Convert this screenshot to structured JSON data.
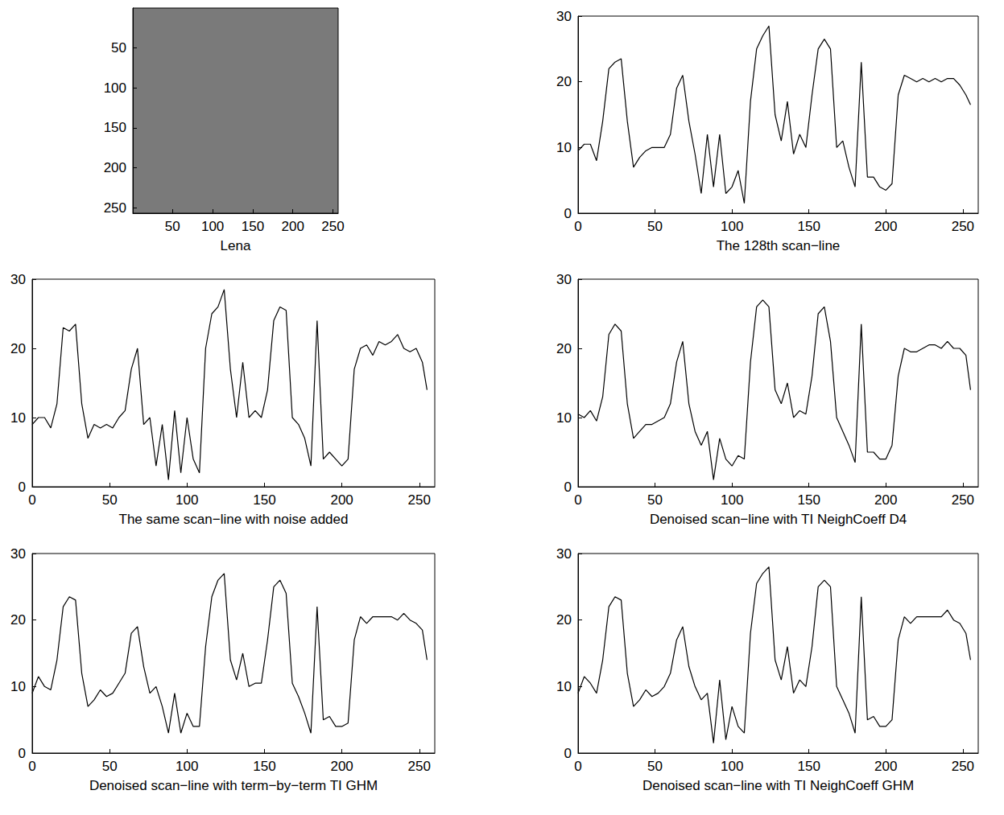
{
  "chart_data": [
    {
      "type": "image",
      "xlabel": "Lena",
      "xlim": [
        0.5,
        256.5
      ],
      "ylim": [
        0.5,
        256.5
      ],
      "xticks": [
        50,
        100,
        150,
        200,
        250
      ],
      "yticks": [
        50,
        100,
        150,
        200,
        250
      ],
      "grid": false
    },
    {
      "type": "line",
      "xlabel": "The 128th scan−line",
      "xlim": [
        0,
        260
      ],
      "ylim": [
        0,
        30
      ],
      "xticks": [
        0,
        50,
        100,
        150,
        200,
        250
      ],
      "yticks": [
        0,
        10,
        20,
        30
      ],
      "grid": false,
      "x": [
        0,
        4,
        8,
        12,
        16,
        20,
        24,
        28,
        32,
        36,
        40,
        44,
        48,
        52,
        56,
        60,
        64,
        68,
        72,
        76,
        80,
        84,
        88,
        92,
        96,
        100,
        104,
        108,
        112,
        116,
        120,
        124,
        128,
        132,
        136,
        140,
        144,
        148,
        152,
        156,
        160,
        164,
        168,
        172,
        176,
        180,
        184,
        188,
        192,
        196,
        200,
        204,
        208,
        212,
        216,
        220,
        224,
        228,
        232,
        236,
        240,
        244,
        248,
        252,
        255
      ],
      "series": [
        {
          "color": "#000000",
          "values": [
            9.5,
            10.5,
            10.5,
            8,
            14,
            22,
            23,
            23.5,
            14,
            7,
            8.5,
            9.5,
            10,
            10,
            10,
            12,
            19,
            21,
            14,
            9,
            3,
            12,
            4,
            12,
            3,
            4,
            6.5,
            1.5,
            17,
            25,
            27,
            28.5,
            15,
            11,
            17,
            9,
            12,
            10,
            18,
            25,
            26.5,
            25,
            10,
            11,
            7,
            4,
            23,
            5.5,
            5.5,
            4,
            3.5,
            4.5,
            18,
            21,
            20.5,
            20,
            20.5,
            20,
            20.5,
            20,
            20.5,
            20.5,
            19.5,
            18,
            16.5
          ]
        }
      ]
    },
    {
      "type": "line",
      "xlabel": "The same scan−line with noise added",
      "xlim": [
        0,
        260
      ],
      "ylim": [
        0,
        30
      ],
      "xticks": [
        0,
        50,
        100,
        150,
        200,
        250
      ],
      "yticks": [
        0,
        10,
        20,
        30
      ],
      "grid": false,
      "x": [
        0,
        4,
        8,
        12,
        16,
        20,
        24,
        28,
        32,
        36,
        40,
        44,
        48,
        52,
        56,
        60,
        64,
        68,
        72,
        76,
        80,
        84,
        88,
        92,
        96,
        100,
        104,
        108,
        112,
        116,
        120,
        124,
        128,
        132,
        136,
        140,
        144,
        148,
        152,
        156,
        160,
        164,
        168,
        172,
        176,
        180,
        184,
        188,
        192,
        196,
        200,
        204,
        208,
        212,
        216,
        220,
        224,
        228,
        232,
        236,
        240,
        244,
        248,
        252,
        255
      ],
      "series": [
        {
          "color": "#000000",
          "values": [
            9,
            10,
            10,
            8.5,
            12,
            23,
            22.5,
            23.5,
            12,
            7,
            9,
            8.5,
            9,
            8.5,
            10,
            11,
            17,
            20,
            9,
            10,
            3,
            9,
            1,
            11,
            2,
            10,
            4,
            2,
            20,
            25,
            26,
            28.5,
            17,
            10,
            18,
            10,
            11,
            10,
            14,
            24,
            26,
            25.5,
            10,
            9,
            7,
            3,
            24,
            4,
            5,
            4,
            3,
            4,
            17,
            20,
            20.5,
            19,
            21,
            20.5,
            21,
            22,
            20,
            19.5,
            20,
            18,
            14
          ]
        }
      ]
    },
    {
      "type": "line",
      "xlabel": "Denoised scan−line with TI NeighCoeff D4",
      "xlim": [
        0,
        260
      ],
      "ylim": [
        0,
        30
      ],
      "xticks": [
        0,
        50,
        100,
        150,
        200,
        250
      ],
      "yticks": [
        0,
        10,
        20,
        30
      ],
      "grid": false,
      "x": [
        0,
        4,
        8,
        12,
        16,
        20,
        24,
        28,
        32,
        36,
        40,
        44,
        48,
        52,
        56,
        60,
        64,
        68,
        72,
        76,
        80,
        84,
        88,
        92,
        96,
        100,
        104,
        108,
        112,
        116,
        120,
        124,
        128,
        132,
        136,
        140,
        144,
        148,
        152,
        156,
        160,
        164,
        168,
        172,
        176,
        180,
        184,
        188,
        192,
        196,
        200,
        204,
        208,
        212,
        216,
        220,
        224,
        228,
        232,
        236,
        240,
        244,
        248,
        252,
        255
      ],
      "series": [
        {
          "color": "#000000",
          "values": [
            10.5,
            10,
            11,
            9.5,
            13,
            22,
            23.5,
            22.5,
            12,
            7,
            8,
            9,
            9,
            9.5,
            10,
            12,
            18,
            21,
            12,
            8,
            6,
            8,
            1,
            7,
            4,
            3,
            4.5,
            4,
            18,
            26,
            27,
            26,
            14,
            12,
            15,
            10,
            11,
            10.5,
            16,
            25,
            26,
            21,
            10,
            8,
            6,
            3.5,
            23.5,
            5,
            5,
            4,
            4,
            6,
            16,
            20,
            19.5,
            19.5,
            20,
            20.5,
            20.5,
            20,
            21,
            20,
            20,
            19,
            14
          ]
        }
      ]
    },
    {
      "type": "line",
      "xlabel": "Denoised scan−line with term−by−term TI GHM",
      "xlim": [
        0,
        260
      ],
      "ylim": [
        0,
        30
      ],
      "xticks": [
        0,
        50,
        100,
        150,
        200,
        250
      ],
      "yticks": [
        0,
        10,
        20,
        30
      ],
      "grid": false,
      "x": [
        0,
        4,
        8,
        12,
        16,
        20,
        24,
        28,
        32,
        36,
        40,
        44,
        48,
        52,
        56,
        60,
        64,
        68,
        72,
        76,
        80,
        84,
        88,
        92,
        96,
        100,
        104,
        108,
        112,
        116,
        120,
        124,
        128,
        132,
        136,
        140,
        144,
        148,
        152,
        156,
        160,
        164,
        168,
        172,
        176,
        180,
        184,
        188,
        192,
        196,
        200,
        204,
        208,
        212,
        216,
        220,
        224,
        228,
        232,
        236,
        240,
        244,
        248,
        252,
        255
      ],
      "series": [
        {
          "color": "#000000",
          "values": [
            9,
            11.5,
            10,
            9.5,
            14,
            22,
            23.5,
            23,
            12,
            7,
            8,
            9.5,
            8.5,
            9,
            10.5,
            12,
            18,
            19,
            13,
            9,
            10,
            7,
            3,
            9,
            3,
            6,
            4,
            4,
            16,
            23.5,
            26,
            27,
            14,
            11,
            15,
            10,
            10.5,
            10.5,
            17,
            25,
            26,
            24,
            10.5,
            8.5,
            6,
            3,
            22,
            5,
            5.5,
            4,
            4,
            4.5,
            17,
            20.5,
            19.5,
            20.5,
            20.5,
            20.5,
            20.5,
            20,
            21,
            20,
            19.5,
            18.5,
            14
          ]
        }
      ]
    },
    {
      "type": "line",
      "xlabel": "Denoised scan−line with TI NeighCoeff GHM",
      "xlim": [
        0,
        260
      ],
      "ylim": [
        0,
        30
      ],
      "xticks": [
        0,
        50,
        100,
        150,
        200,
        250
      ],
      "yticks": [
        0,
        10,
        20,
        30
      ],
      "grid": false,
      "x": [
        0,
        4,
        8,
        12,
        16,
        20,
        24,
        28,
        32,
        36,
        40,
        44,
        48,
        52,
        56,
        60,
        64,
        68,
        72,
        76,
        80,
        84,
        88,
        92,
        96,
        100,
        104,
        108,
        112,
        116,
        120,
        124,
        128,
        132,
        136,
        140,
        144,
        148,
        152,
        156,
        160,
        164,
        168,
        172,
        176,
        180,
        184,
        188,
        192,
        196,
        200,
        204,
        208,
        212,
        216,
        220,
        224,
        228,
        232,
        236,
        240,
        244,
        248,
        252,
        255
      ],
      "series": [
        {
          "color": "#000000",
          "values": [
            9,
            11.5,
            10.5,
            9,
            14,
            22,
            23.5,
            23,
            12,
            7,
            8,
            9.5,
            8.5,
            9,
            10,
            12,
            17,
            19,
            13,
            10,
            8,
            9,
            1.5,
            11,
            2,
            7,
            4,
            3,
            18,
            25.5,
            27,
            28,
            14,
            11,
            16,
            9,
            11,
            10,
            16,
            25,
            26,
            25,
            10,
            8,
            6,
            3,
            23.5,
            5,
            5.5,
            4,
            4,
            5,
            17,
            20.5,
            19.5,
            20.5,
            20.5,
            20.5,
            20.5,
            20.5,
            21.5,
            20,
            19.5,
            18,
            14
          ]
        }
      ]
    }
  ]
}
